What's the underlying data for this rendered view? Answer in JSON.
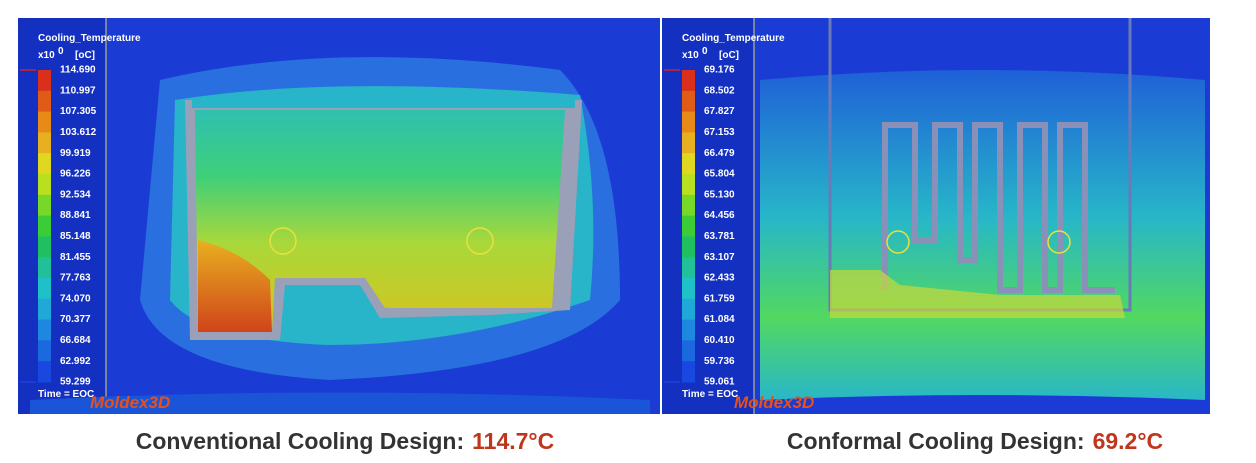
{
  "panels": [
    {
      "title": "Cooling_Temperature",
      "scale_prefix": "x10",
      "scale_exponent": "0",
      "unit": "[oC]",
      "legend": [
        "114.690",
        "110.997",
        "107.305",
        "103.612",
        "99.919",
        "96.226",
        "92.534",
        "88.841",
        "85.148",
        "81.455",
        "77.763",
        "74.070",
        "70.377",
        "66.684",
        "62.992",
        "59.299"
      ],
      "time": "Time = EOC",
      "brand": "Moldex3D",
      "caption_label": "Conventional Cooling Design:",
      "caption_value": "114.7°C"
    },
    {
      "title": "Cooling_Temperature",
      "scale_prefix": "x10",
      "scale_exponent": "0",
      "unit": "[oC]",
      "legend": [
        "69.176",
        "68.502",
        "67.827",
        "67.153",
        "66.479",
        "65.804",
        "65.130",
        "64.456",
        "63.781",
        "63.107",
        "62.433",
        "61.759",
        "61.084",
        "60.410",
        "59.736",
        "59.061"
      ],
      "time": "Time = EOC",
      "brand": "Moldex3D",
      "caption_label": "Conformal Cooling Design:",
      "caption_value": "69.2°C"
    }
  ]
}
